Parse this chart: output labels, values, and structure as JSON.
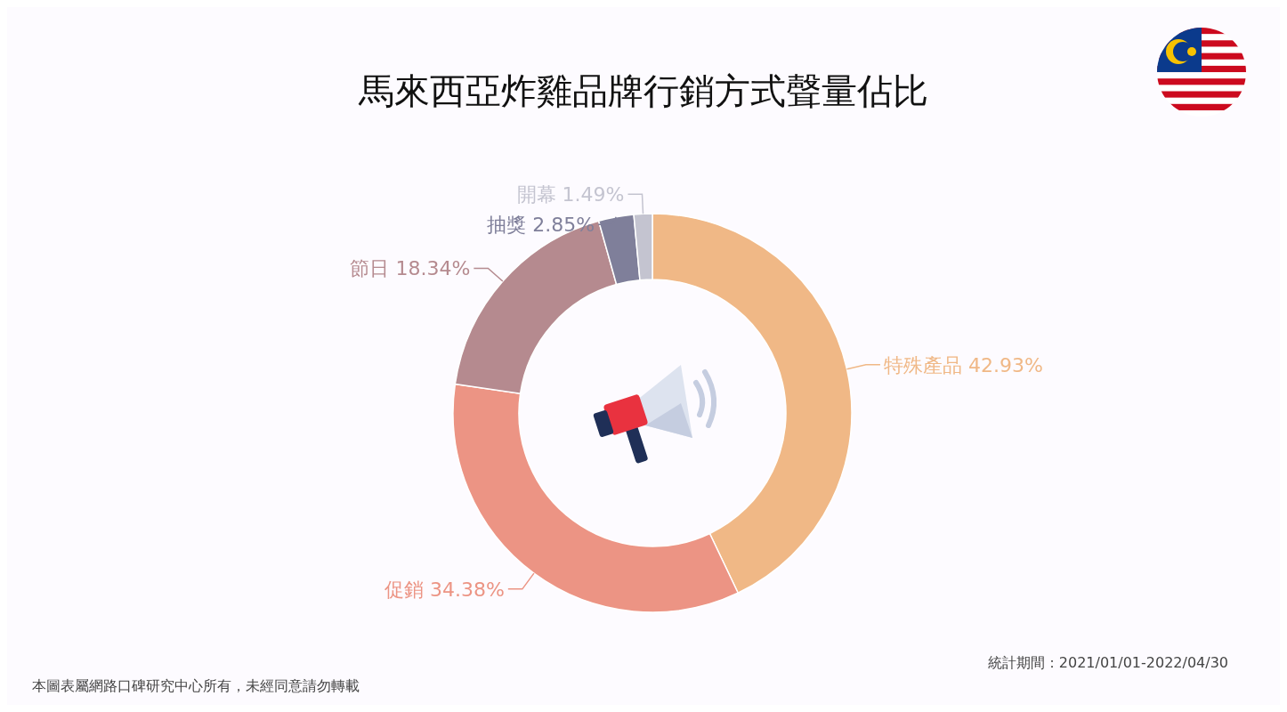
{
  "chart_data": {
    "type": "donut",
    "title": "馬來西亞炸雞品牌行銷方式聲量佔比",
    "categories": [
      "特殊產品",
      "促銷",
      "節日",
      "抽獎",
      "開幕"
    ],
    "values": [
      42.93,
      34.38,
      18.34,
      2.85,
      1.49
    ],
    "value_labels": [
      "42.93%",
      "34.38%",
      "18.34%",
      "2.85%",
      "1.49%"
    ],
    "colors": [
      "#f0b886",
      "#ec9484",
      "#b58a8f",
      "#7f7f9a",
      "#c4c4d0"
    ],
    "legend": false,
    "annotations": [
      "統計期間：2021/01/01-2022/04/30",
      "本圖表屬網路口碑研究中心所有，未經同意請勿轉載"
    ]
  }
}
